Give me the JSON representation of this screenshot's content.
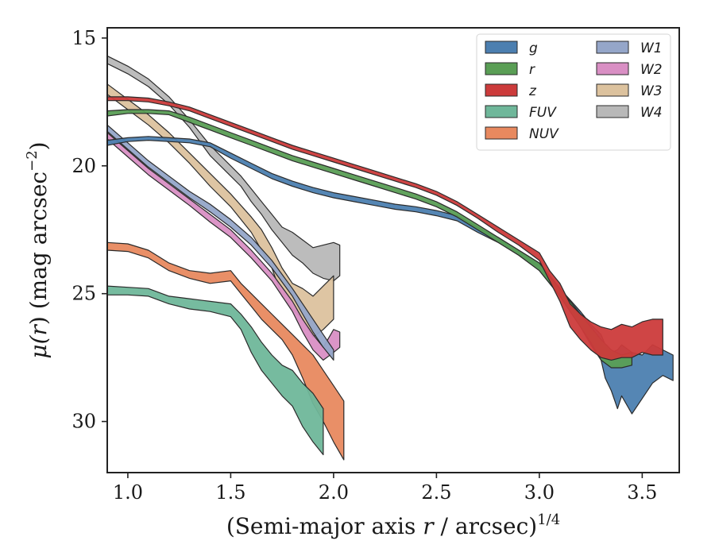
{
  "chart_data": {
    "type": "area",
    "title": "",
    "xlabel": "(Semi-major axis r / arcsec)^{1/4}",
    "xlabel_parts": [
      "(Semi-major axis ",
      "r",
      " / arcsec)",
      "1/4"
    ],
    "ylabel": "μ(r) (mag arcsec^{−2})",
    "ylabel_parts": [
      "μ(",
      "r",
      ") (mag arcsec",
      "−2",
      ")"
    ],
    "xlim": [
      0.9,
      3.68
    ],
    "ylim": [
      32.0,
      14.6
    ],
    "y_inverted": true,
    "xticks": [
      1.0,
      1.5,
      2.0,
      2.5,
      3.0,
      3.5
    ],
    "xtick_labels": [
      "1.0",
      "1.5",
      "2.0",
      "2.5",
      "3.0",
      "3.5"
    ],
    "yticks": [
      15,
      20,
      25,
      30
    ],
    "ytick_labels": [
      "15",
      "20",
      "25",
      "30"
    ],
    "legend": {
      "position": "top-right",
      "columns": 2
    },
    "series": [
      {
        "name": "g",
        "color": "#4c7fb0",
        "x": [
          0.9,
          1.0,
          1.1,
          1.2,
          1.3,
          1.4,
          1.5,
          1.6,
          1.7,
          1.8,
          1.9,
          2.0,
          2.1,
          2.2,
          2.3,
          2.4,
          2.5,
          2.6,
          2.7,
          2.8,
          2.9,
          3.0,
          3.1,
          3.2,
          3.25,
          3.3,
          3.32,
          3.35,
          3.38,
          3.4,
          3.45,
          3.5,
          3.55,
          3.6,
          3.65
        ],
        "lo": [
          19.0,
          18.9,
          18.85,
          18.9,
          18.95,
          19.1,
          19.5,
          19.9,
          20.3,
          20.6,
          20.85,
          21.05,
          21.2,
          21.35,
          21.5,
          21.6,
          21.75,
          21.95,
          22.4,
          22.8,
          23.3,
          23.8,
          24.8,
          25.7,
          26.2,
          26.6,
          27.0,
          27.3,
          27.2,
          27.0,
          27.3,
          27.4,
          27.0,
          27.2,
          27.4
        ],
        "hi": [
          19.2,
          19.05,
          19.0,
          19.05,
          19.1,
          19.25,
          19.7,
          20.1,
          20.5,
          20.8,
          21.05,
          21.25,
          21.4,
          21.55,
          21.7,
          21.8,
          21.95,
          22.15,
          22.6,
          23.0,
          23.5,
          24.1,
          25.1,
          26.3,
          27.0,
          27.6,
          28.3,
          28.8,
          29.5,
          29.0,
          29.7,
          29.1,
          28.5,
          28.2,
          28.4
        ]
      },
      {
        "name": "r",
        "color": "#5a9e55",
        "x": [
          0.9,
          1.0,
          1.1,
          1.2,
          1.3,
          1.4,
          1.5,
          1.6,
          1.7,
          1.8,
          1.9,
          2.0,
          2.1,
          2.2,
          2.3,
          2.4,
          2.5,
          2.6,
          2.7,
          2.8,
          2.9,
          3.0,
          3.1,
          3.2,
          3.25,
          3.3,
          3.35,
          3.4,
          3.45
        ],
        "lo": [
          17.85,
          17.8,
          17.8,
          17.85,
          18.1,
          18.4,
          18.7,
          19.0,
          19.3,
          19.6,
          19.85,
          20.1,
          20.35,
          20.6,
          20.85,
          21.1,
          21.4,
          21.8,
          22.3,
          22.8,
          23.3,
          23.8,
          24.8,
          25.8,
          26.3,
          26.8,
          27.2,
          27.4,
          27.3
        ],
        "hi": [
          18.05,
          17.95,
          17.95,
          18.0,
          18.3,
          18.6,
          18.9,
          19.2,
          19.5,
          19.8,
          20.05,
          20.3,
          20.55,
          20.8,
          21.05,
          21.3,
          21.6,
          22.0,
          22.5,
          23.0,
          23.5,
          24.1,
          25.1,
          26.3,
          26.9,
          27.6,
          27.9,
          27.9,
          27.8
        ]
      },
      {
        "name": "z",
        "color": "#cc3b3b",
        "x": [
          0.9,
          1.0,
          1.1,
          1.2,
          1.3,
          1.4,
          1.5,
          1.6,
          1.7,
          1.8,
          1.9,
          2.0,
          2.1,
          2.2,
          2.3,
          2.4,
          2.5,
          2.6,
          2.7,
          2.8,
          2.9,
          3.0,
          3.05,
          3.1,
          3.15,
          3.2,
          3.25,
          3.3,
          3.35,
          3.4,
          3.45,
          3.5,
          3.55,
          3.6
        ],
        "lo": [
          17.3,
          17.3,
          17.35,
          17.5,
          17.7,
          18.0,
          18.3,
          18.6,
          18.9,
          19.2,
          19.45,
          19.7,
          19.95,
          20.2,
          20.45,
          20.7,
          21.0,
          21.4,
          21.9,
          22.4,
          22.9,
          23.4,
          24.1,
          24.6,
          25.4,
          25.8,
          26.1,
          26.3,
          26.4,
          26.2,
          26.3,
          26.1,
          26.0,
          26.0
        ],
        "hi": [
          17.45,
          17.45,
          17.5,
          17.65,
          17.85,
          18.15,
          18.45,
          18.75,
          19.05,
          19.35,
          19.6,
          19.85,
          20.1,
          20.35,
          20.6,
          20.85,
          21.15,
          21.55,
          22.05,
          22.6,
          23.1,
          23.7,
          24.5,
          25.3,
          26.3,
          26.8,
          27.2,
          27.5,
          27.6,
          27.5,
          27.5,
          27.3,
          27.4,
          27.4
        ]
      },
      {
        "name": "FUV",
        "color": "#6fb79a",
        "x": [
          0.9,
          1.0,
          1.1,
          1.2,
          1.3,
          1.4,
          1.5,
          1.55,
          1.6,
          1.65,
          1.7,
          1.75,
          1.8,
          1.85,
          1.9,
          1.95
        ],
        "lo": [
          24.7,
          24.75,
          24.8,
          25.1,
          25.2,
          25.3,
          25.4,
          25.8,
          26.3,
          26.9,
          27.4,
          27.8,
          28.0,
          28.5,
          28.9,
          29.5
        ],
        "hi": [
          25.05,
          25.05,
          25.1,
          25.4,
          25.6,
          25.7,
          25.9,
          26.4,
          27.3,
          28.0,
          28.5,
          29.0,
          29.4,
          30.2,
          30.8,
          31.3
        ]
      },
      {
        "name": "NUV",
        "color": "#e8895f",
        "x": [
          0.9,
          1.0,
          1.1,
          1.2,
          1.3,
          1.4,
          1.5,
          1.55,
          1.6,
          1.65,
          1.7,
          1.75,
          1.8,
          1.85,
          1.9,
          1.95,
          2.0,
          2.05
        ],
        "lo": [
          23.0,
          23.05,
          23.3,
          23.8,
          24.1,
          24.2,
          24.1,
          24.6,
          25.0,
          25.4,
          25.8,
          26.2,
          26.6,
          27.0,
          27.4,
          28.0,
          28.6,
          29.2
        ],
        "hi": [
          23.3,
          23.35,
          23.6,
          24.1,
          24.4,
          24.6,
          24.5,
          25.0,
          25.5,
          26.0,
          26.4,
          26.8,
          27.4,
          28.3,
          29.3,
          30.0,
          30.8,
          31.5
        ]
      },
      {
        "name": "W1",
        "color": "#95a6c9",
        "x": [
          0.9,
          1.0,
          1.1,
          1.2,
          1.3,
          1.4,
          1.5,
          1.6,
          1.7,
          1.8,
          1.85,
          1.9,
          1.95,
          2.0
        ],
        "lo": [
          18.4,
          19.1,
          19.8,
          20.4,
          21.0,
          21.5,
          22.1,
          22.8,
          23.7,
          24.8,
          25.4,
          26.0,
          26.6,
          27.2
        ],
        "hi": [
          18.65,
          19.35,
          20.05,
          20.65,
          21.25,
          21.8,
          22.4,
          23.1,
          24.0,
          25.1,
          25.8,
          26.5,
          27.1,
          27.6
        ]
      },
      {
        "name": "W2",
        "color": "#d98fc4",
        "x": [
          0.9,
          1.0,
          1.1,
          1.2,
          1.3,
          1.4,
          1.5,
          1.6,
          1.7,
          1.8,
          1.85,
          1.9,
          1.95,
          2.0,
          2.03
        ],
        "lo": [
          18.7,
          19.4,
          20.1,
          20.7,
          21.3,
          21.9,
          22.5,
          23.3,
          24.2,
          25.3,
          26.0,
          26.6,
          27.1,
          26.4,
          26.5
        ],
        "hi": [
          18.95,
          19.65,
          20.35,
          20.95,
          21.55,
          22.2,
          22.8,
          23.6,
          24.5,
          25.7,
          26.5,
          27.2,
          27.6,
          27.3,
          27.1
        ]
      },
      {
        "name": "W3",
        "color": "#dcc29e",
        "x": [
          0.9,
          1.0,
          1.1,
          1.2,
          1.3,
          1.4,
          1.5,
          1.6,
          1.65,
          1.7,
          1.75,
          1.8,
          1.85,
          1.9,
          1.95,
          2.0
        ],
        "lo": [
          16.8,
          17.4,
          18.0,
          18.7,
          19.5,
          20.3,
          21.1,
          22.0,
          22.5,
          23.2,
          24.0,
          24.6,
          24.8,
          25.1,
          24.7,
          24.3
        ],
        "hi": [
          17.2,
          17.8,
          18.4,
          19.1,
          19.9,
          20.8,
          21.6,
          22.6,
          23.3,
          24.0,
          25.1,
          25.6,
          26.0,
          26.7,
          26.4,
          26.0
        ]
      },
      {
        "name": "W4",
        "color": "#b8b8b8",
        "x": [
          0.9,
          1.0,
          1.1,
          1.2,
          1.3,
          1.4,
          1.5,
          1.55,
          1.6,
          1.65,
          1.7,
          1.75,
          1.8,
          1.85,
          1.9,
          1.95,
          2.0,
          2.03
        ],
        "lo": [
          15.7,
          16.1,
          16.6,
          17.3,
          18.2,
          19.2,
          20.0,
          20.4,
          20.9,
          21.4,
          21.9,
          22.4,
          22.6,
          22.9,
          23.2,
          23.1,
          23.0,
          23.1
        ],
        "hi": [
          16.0,
          16.4,
          16.9,
          17.6,
          18.5,
          19.6,
          20.4,
          20.8,
          21.4,
          21.9,
          22.5,
          23.0,
          23.5,
          23.8,
          24.2,
          24.4,
          24.5,
          24.3
        ]
      }
    ]
  }
}
